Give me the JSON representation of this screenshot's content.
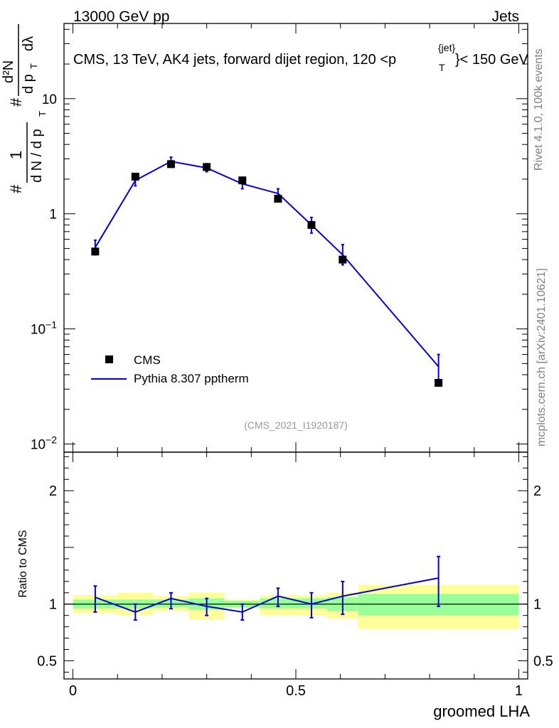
{
  "header": {
    "left": "13000 GeV pp",
    "right": "Jets"
  },
  "side_labels": {
    "rivet": "Rivet 4.1.0,  100k events",
    "mcplots": "mcplots.cern.ch [arXiv:2401.10621]"
  },
  "colors": {
    "mc_line": "#0000dd",
    "data_marker": "#000000",
    "band_inner": "#99ff99",
    "band_outer": "#ffff99"
  },
  "chart_data": [
    {
      "type": "line",
      "name": "main",
      "title_main": "CMS, 13 TeV, AK4 jets, forward dijet region, 120 <p",
      "title_sub": "T",
      "title_sup": "{jet}",
      "title_end": "}< 150 GeV",
      "ylabel": "1/dN/dp_T d²N/dp_T dλ",
      "ylabel_parts": {
        "hash": "#",
        "one": "1",
        "dn": "d N / d p",
        "d2n": "d²N",
        "dpt": "d p",
        "dl": "dλ",
        "t": "T"
      },
      "yscale": "log",
      "ylim": [
        0.0085,
        45
      ],
      "xlim": [
        -0.02,
        1.02
      ],
      "yticks": [
        {
          "value": 0.01,
          "base": "10",
          "exp": "−2"
        },
        {
          "value": 0.1,
          "base": "10",
          "exp": "−1"
        },
        {
          "value": 1,
          "base": "1",
          "exp": ""
        },
        {
          "value": 10,
          "base": "10",
          "exp": ""
        }
      ],
      "series": [
        {
          "name": "CMS",
          "kind": "points",
          "x": [
            0.05,
            0.14,
            0.22,
            0.3,
            0.38,
            0.46,
            0.535,
            0.605,
            0.82
          ],
          "values": [
            0.47,
            2.1,
            2.7,
            2.55,
            1.95,
            1.35,
            0.8,
            0.4,
            0.034
          ]
        },
        {
          "name": "Pythia 8.307 pptherm",
          "kind": "line",
          "x": [
            0.05,
            0.14,
            0.22,
            0.3,
            0.38,
            0.46,
            0.535,
            0.605,
            0.82
          ],
          "values": [
            0.51,
            1.95,
            2.85,
            2.5,
            1.82,
            1.5,
            0.8,
            0.44,
            0.047
          ],
          "err_low": [
            0.44,
            1.75,
            2.6,
            2.32,
            1.65,
            1.33,
            0.68,
            0.36,
            0.035
          ],
          "err_high": [
            0.59,
            2.15,
            3.1,
            2.72,
            2.0,
            1.65,
            0.93,
            0.54,
            0.06
          ]
        }
      ],
      "legend": [
        "CMS",
        "Pythia 8.307 pptherm"
      ],
      "legend_position": "lower-left",
      "watermark": "(CMS_2021_I1920187)"
    },
    {
      "type": "line",
      "name": "ratio",
      "ylabel": "Ratio to CMS",
      "xlabel": "groomed LHA",
      "ylim": [
        0.34,
        2.34
      ],
      "xlim": [
        -0.02,
        1.02
      ],
      "yticks": [
        {
          "value": 0.5,
          "label": "0.5"
        },
        {
          "value": 1,
          "label": "1"
        },
        {
          "value": 2,
          "label": "2"
        }
      ],
      "xticks": [
        {
          "value": 0,
          "label": "0"
        },
        {
          "value": 0.5,
          "label": "0.5"
        },
        {
          "value": 1,
          "label": "1"
        }
      ],
      "bands": [
        {
          "x0": 0.0,
          "x1": 0.1,
          "inner": [
            0.96,
            1.04
          ],
          "outer": [
            0.92,
            1.08
          ]
        },
        {
          "x0": 0.1,
          "x1": 0.18,
          "inner": [
            0.96,
            1.04
          ],
          "outer": [
            0.9,
            1.1
          ]
        },
        {
          "x0": 0.18,
          "x1": 0.26,
          "inner": [
            0.97,
            1.04
          ],
          "outer": [
            0.94,
            1.07
          ]
        },
        {
          "x0": 0.26,
          "x1": 0.34,
          "inner": [
            0.95,
            1.05
          ],
          "outer": [
            0.86,
            1.1
          ]
        },
        {
          "x0": 0.34,
          "x1": 0.42,
          "inner": [
            0.97,
            1.03
          ],
          "outer": [
            0.96,
            1.04
          ]
        },
        {
          "x0": 0.42,
          "x1": 0.5,
          "inner": [
            0.96,
            1.05
          ],
          "outer": [
            0.9,
            1.08
          ]
        },
        {
          "x0": 0.5,
          "x1": 0.57,
          "inner": [
            0.96,
            1.05
          ],
          "outer": [
            0.9,
            1.08
          ]
        },
        {
          "x0": 0.57,
          "x1": 0.64,
          "inner": [
            0.94,
            1.06
          ],
          "outer": [
            0.87,
            1.1
          ]
        },
        {
          "x0": 0.64,
          "x1": 1.0,
          "inner": [
            0.9,
            1.09
          ],
          "outer": [
            0.78,
            1.17
          ]
        }
      ],
      "series": [
        {
          "name": "Pythia 8.307 pptherm",
          "x": [
            0.05,
            0.14,
            0.22,
            0.3,
            0.38,
            0.46,
            0.535,
            0.605,
            0.82
          ],
          "values": [
            1.06,
            0.93,
            1.05,
            0.98,
            0.93,
            1.07,
            1.0,
            1.07,
            1.23
          ],
          "err_low": [
            0.93,
            0.86,
            0.96,
            0.9,
            0.86,
            0.98,
            0.88,
            0.91,
            0.98
          ],
          "err_high": [
            1.16,
            1.0,
            1.1,
            1.05,
            1.0,
            1.14,
            1.1,
            1.2,
            1.42
          ]
        }
      ]
    }
  ]
}
